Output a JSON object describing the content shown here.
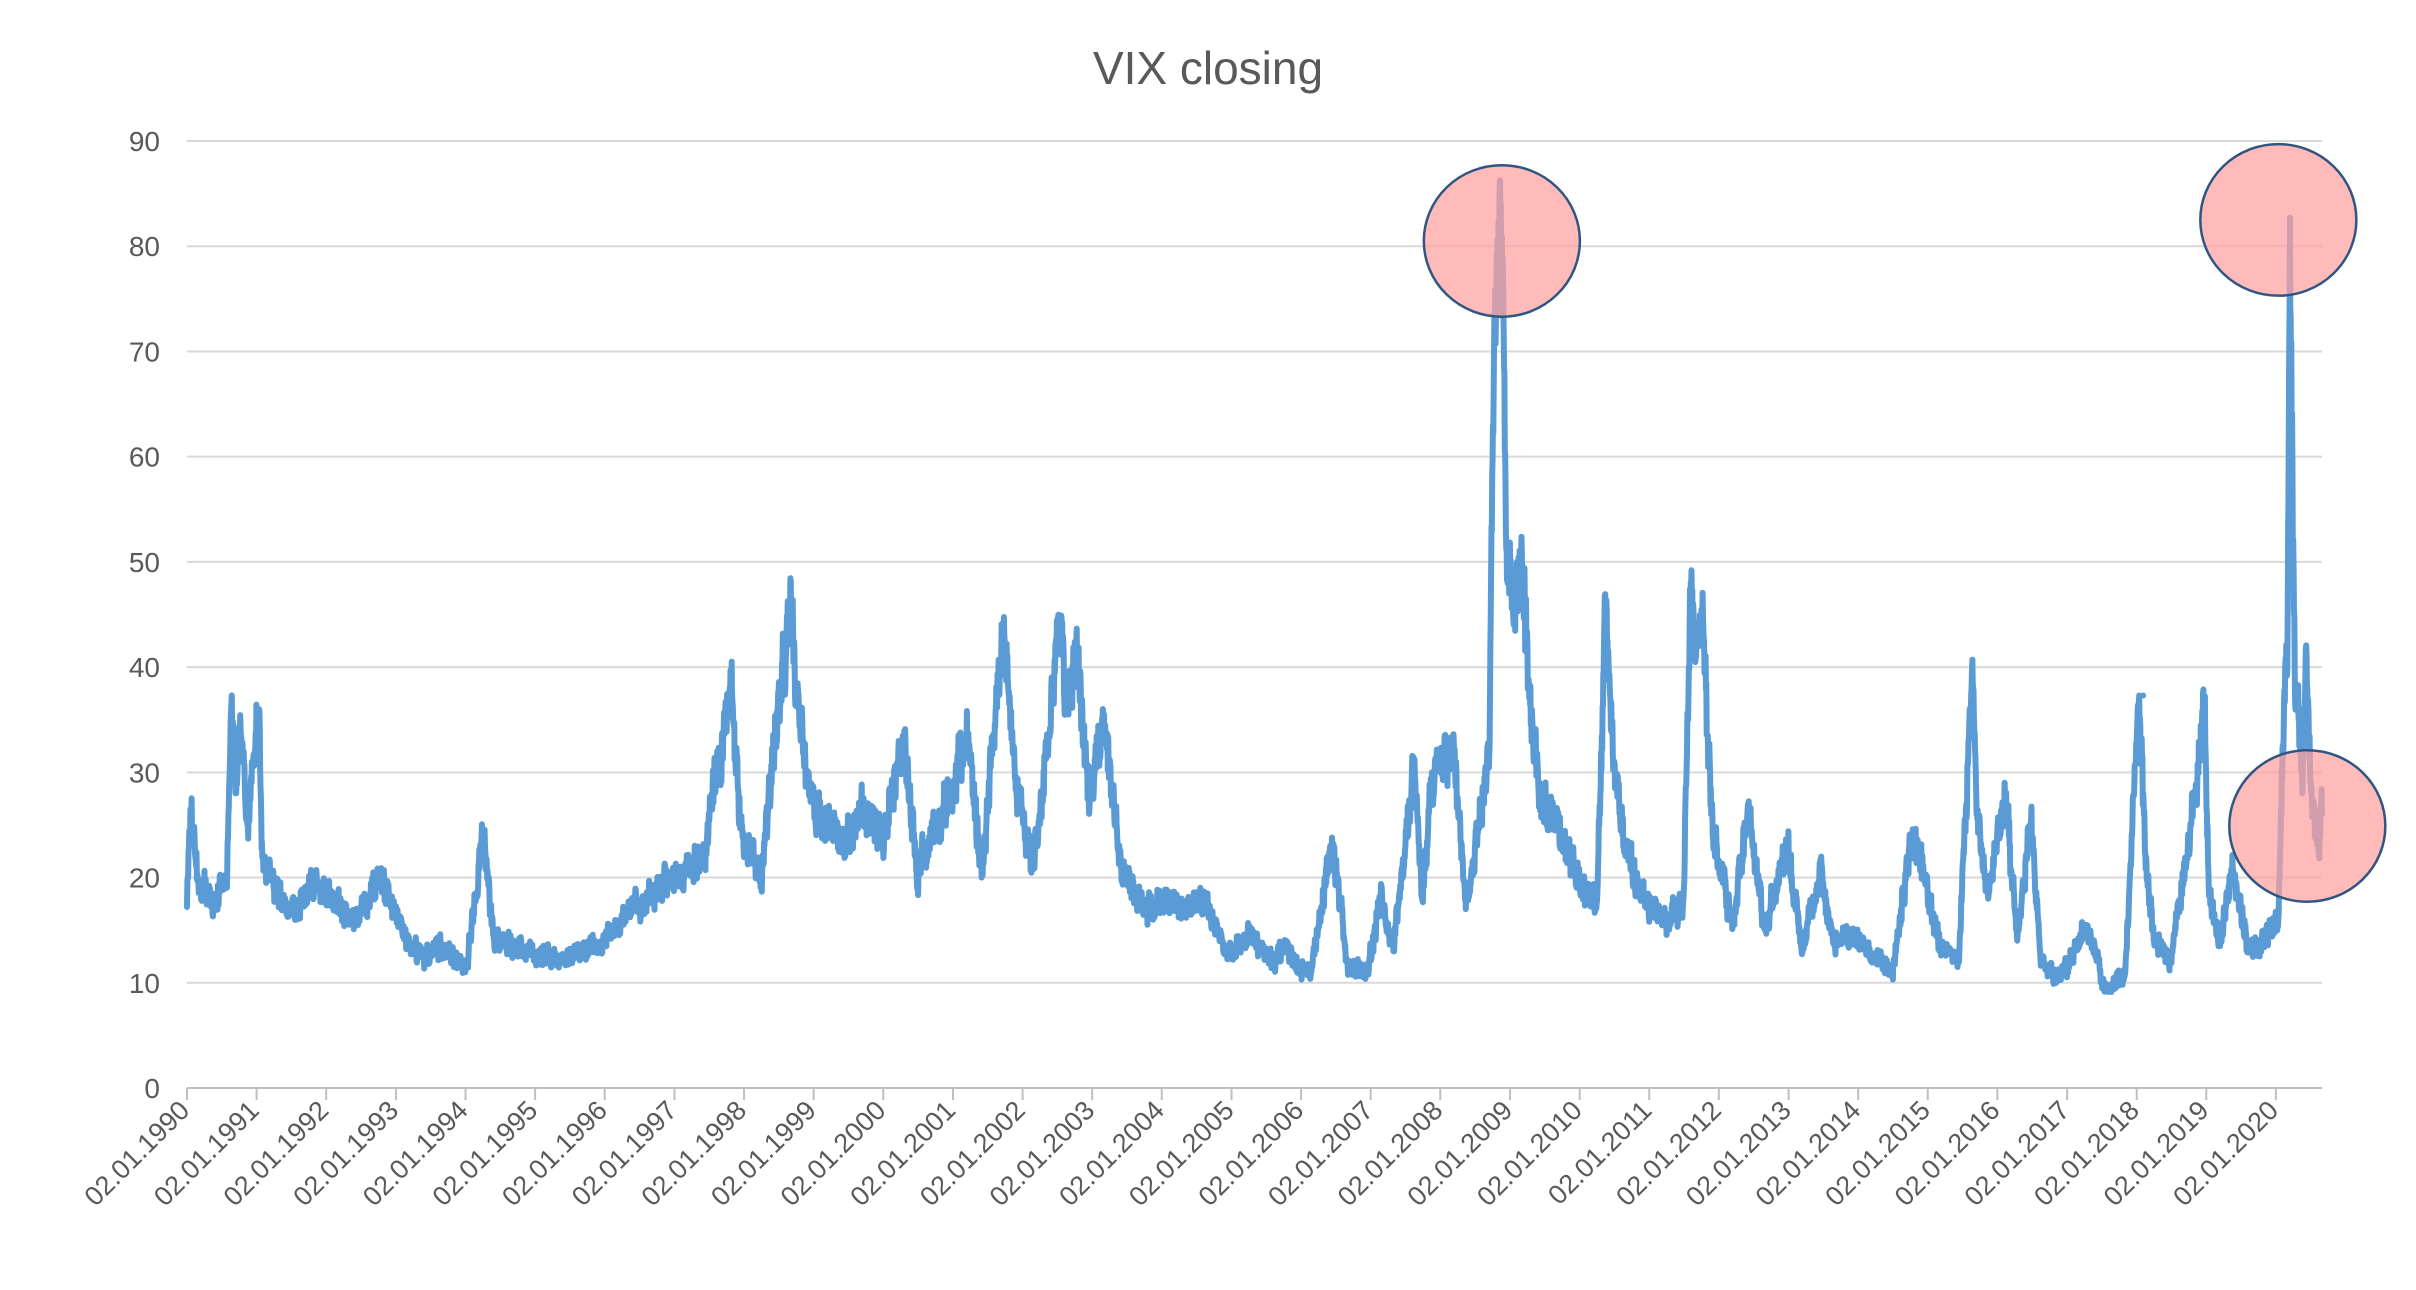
{
  "chart_data": {
    "type": "line",
    "title": "VIX closing",
    "xlabel": "",
    "ylabel": "",
    "ylim": [
      0,
      90
    ],
    "yticks": [
      0,
      10,
      20,
      30,
      40,
      50,
      60,
      70,
      80,
      90
    ],
    "xlim": [
      "1990-01-02",
      "2020-08-31"
    ],
    "x_tick_labels": [
      "02.01.1990",
      "02.01.1991",
      "02.01.1992",
      "02.01.1993",
      "02.01.1994",
      "02.01.1995",
      "02.01.1996",
      "02.01.1997",
      "02.01.1998",
      "02.01.1999",
      "02.01.2000",
      "02.01.2001",
      "02.01.2002",
      "02.01.2003",
      "02.01.2004",
      "02.01.2005",
      "02.01.2006",
      "02.01.2007",
      "02.01.2008",
      "02.01.2009",
      "02.01.2010",
      "02.01.2011",
      "02.01.2012",
      "02.01.2013",
      "02.01.2014",
      "02.01.2015",
      "02.01.2016",
      "02.01.2017",
      "02.01.2018",
      "02.01.2019",
      "02.01.2020"
    ],
    "grid": "horizontal",
    "legend": "none",
    "series": [
      {
        "color": "#5b9bd5",
        "x": [
          "1990-01-02",
          "1990-01-20",
          "1990-03-01",
          "1990-06-01",
          "1990-08-01",
          "1990-08-23",
          "1990-09-15",
          "1990-10-10",
          "1990-11-15",
          "1991-01-15",
          "1991-02-01",
          "1991-04-01",
          "1991-07-01",
          "1991-11-15",
          "1992-03-01",
          "1992-06-01",
          "1992-10-15",
          "1993-03-01",
          "1993-06-01",
          "1993-10-01",
          "1994-01-01",
          "1994-04-04",
          "1994-06-01",
          "1994-10-01",
          "1995-01-01",
          "1995-06-01",
          "1996-01-01",
          "1996-07-15",
          "1997-01-01",
          "1997-06-01",
          "1997-10-27",
          "1997-12-15",
          "1998-04-01",
          "1998-08-31",
          "1998-10-08",
          "1998-12-15",
          "1999-03-01",
          "1999-06-01",
          "1999-10-15",
          "2000-01-01",
          "2000-04-14",
          "2000-07-01",
          "2000-10-15",
          "2001-01-01",
          "2001-03-22",
          "2001-06-01",
          "2001-09-20",
          "2001-12-01",
          "2002-03-01",
          "2002-07-23",
          "2002-08-15",
          "2002-10-09",
          "2002-12-15",
          "2003-03-11",
          "2003-06-01",
          "2003-10-01",
          "2004-01-01",
          "2004-05-01",
          "2004-08-13",
          "2004-12-15",
          "2005-04-15",
          "2005-08-01",
          "2005-10-15",
          "2005-12-20",
          "2006-03-01",
          "2006-06-13",
          "2006-09-01",
          "2006-12-15",
          "2007-02-27",
          "2007-05-01",
          "2007-08-16",
          "2007-10-01",
          "2007-11-15",
          "2008-01-22",
          "2008-03-17",
          "2008-05-15",
          "2008-09-15",
          "2008-10-10",
          "2008-10-24",
          "2008-11-20",
          "2008-12-15",
          "2009-01-15",
          "2009-03-09",
          "2009-04-15",
          "2009-06-01",
          "2009-09-01",
          "2009-12-15",
          "2010-04-01",
          "2010-05-20",
          "2010-06-15",
          "2010-08-15",
          "2010-11-15",
          "2011-04-01",
          "2011-07-01",
          "2011-08-08",
          "2011-08-30",
          "2011-10-03",
          "2011-12-01",
          "2012-03-15",
          "2012-06-01",
          "2012-09-01",
          "2012-12-28",
          "2013-03-15",
          "2013-06-20",
          "2013-09-01",
          "2013-12-15",
          "2014-03-01",
          "2014-07-01",
          "2014-10-15",
          "2014-12-15",
          "2015-03-01",
          "2015-06-15",
          "2015-08-24",
          "2015-09-15",
          "2015-11-15",
          "2016-02-11",
          "2016-04-15",
          "2016-06-27",
          "2016-08-15",
          "2016-11-04",
          "2017-01-15",
          "2017-04-13",
          "2017-07-15",
          "2017-08-10",
          "2017-11-03",
          "2018-01-15",
          "2018-02-05",
          "2018-02-20",
          "2018-04-01",
          "2018-07-01",
          "2018-10-15",
          "2018-12-24",
          "2019-01-15",
          "2019-03-15",
          "2019-05-15",
          "2019-08-15",
          "2019-10-15",
          "2020-01-15",
          "2020-02-20",
          "2020-03-02",
          "2020-03-16",
          "2020-03-25",
          "2020-04-10",
          "2020-04-30",
          "2020-05-20",
          "2020-06-11",
          "2020-06-25",
          "2020-07-15",
          "2020-08-15",
          "2020-08-31"
        ],
        "y": [
          17.2,
          26.5,
          19.5,
          17.5,
          20.5,
          36.5,
          29,
          34,
          25,
          36,
          22,
          19,
          16.5,
          19.5,
          17.5,
          16,
          20,
          14,
          12.5,
          13.5,
          11,
          23.9,
          14,
          13.5,
          12.5,
          12.5,
          14,
          18,
          20,
          22,
          38.2,
          25,
          20,
          45.5,
          38,
          28,
          25,
          23,
          27,
          23,
          33.5,
          21,
          25,
          29,
          33,
          20,
          43.7,
          28,
          21,
          44.9,
          36,
          42.6,
          28,
          34.5,
          21,
          17,
          18,
          17,
          18,
          12.8,
          14.5,
          12,
          14,
          11,
          11.5,
          23.8,
          12,
          11,
          18.3,
          13,
          30.8,
          18,
          28,
          31,
          32.2,
          17,
          31.7,
          70,
          79.1,
          80.9,
          52,
          46,
          49.7,
          38,
          28,
          25,
          20,
          17.5,
          45.8,
          34,
          24,
          18,
          16,
          18,
          48,
          42,
          45.5,
          24,
          15.5,
          26.5,
          15,
          23,
          13,
          20.5,
          14,
          14.5,
          13,
          11,
          24.6,
          20,
          14,
          12,
          40.7,
          26,
          18,
          28.1,
          14,
          25.6,
          12.5,
          10.5,
          12,
          15.5,
          9.5,
          9.2,
          11,
          37.3,
          28,
          22,
          14,
          12,
          25,
          36.1,
          19,
          13.5,
          20.5,
          13,
          13.5,
          16,
          40,
          40,
          82.7,
          62,
          40,
          35,
          28,
          40.8,
          33,
          26,
          23.5,
          26
        ],
        "peaks": [
          {
            "x": "1990-08-23",
            "y": 36.5
          },
          {
            "x": "1998-08-31",
            "y": 45.5
          },
          {
            "x": "2002-07-23",
            "y": 44.9
          },
          {
            "x": "2008-11-20",
            "y": 80.9
          },
          {
            "x": "2011-08-08",
            "y": 48
          },
          {
            "x": "2015-08-24",
            "y": 40.7
          },
          {
            "x": "2018-02-05",
            "y": 37.3
          },
          {
            "x": "2020-03-16",
            "y": 82.7
          }
        ]
      }
    ],
    "annotations": [
      {
        "type": "circle",
        "color": "#ff9f9f",
        "x": "2008-11-20",
        "y": 80.5
      },
      {
        "type": "circle",
        "color": "#ff9f9f",
        "x": "2020-01-15",
        "y": 82.5
      },
      {
        "type": "circle",
        "color": "#ff9f9f",
        "x": "2020-06-15",
        "y": 24.9
      }
    ]
  }
}
